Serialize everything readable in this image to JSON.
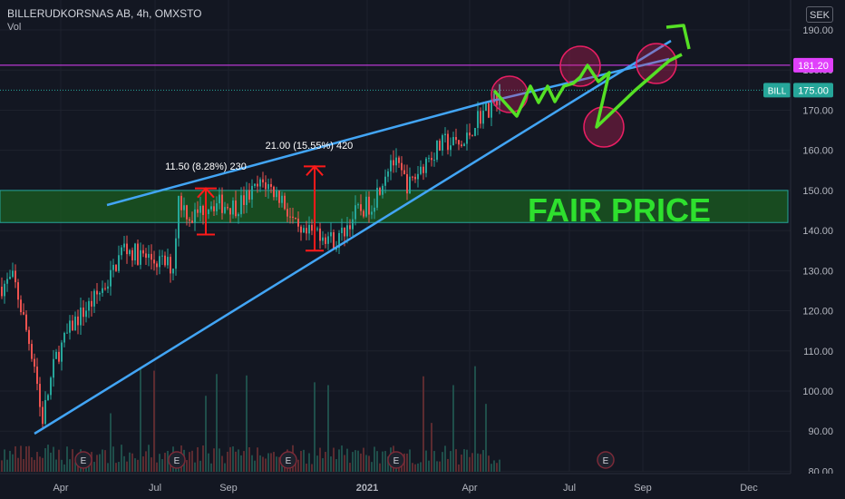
{
  "header": {
    "title": "BILLERUDKORSNAS AB, 4h, OMXSTO",
    "vol_label": "Vol"
  },
  "currency": "SEK",
  "chart_data": {
    "type": "candlestick",
    "x_ticks": [
      "Apr",
      "Jul",
      "Sep",
      "2021",
      "Apr",
      "Jul",
      "Sep",
      "Dec"
    ],
    "y_ticks": [
      "190.00",
      "180.00",
      "170.00",
      "160.00",
      "150.00",
      "140.00",
      "130.00",
      "120.00",
      "110.00",
      "100.00",
      "90.00",
      "80.00"
    ],
    "ylim": [
      80,
      190
    ],
    "price_levels": [
      {
        "label": "181.20",
        "value": 181.2,
        "color": "#e040fb"
      },
      {
        "label": "175.00",
        "value": 175.0,
        "color": "#26a69a",
        "tag": "BILL"
      }
    ],
    "fair_price_zone": {
      "label": "FAIR PRICE",
      "low": 142,
      "high": 150,
      "color": "#1b5e20",
      "text_color": "#2ee02e"
    },
    "measurements": [
      {
        "label": "11.50 (8.28%) 230",
        "low": 139,
        "high": 150.5
      },
      {
        "label": "21.00 (15.55%) 420",
        "low": 135,
        "high": 156
      }
    ],
    "earnings_markers": [
      "E",
      "E",
      "E",
      "E",
      "E"
    ],
    "colors": {
      "up": "#26a69a",
      "down": "#ef5350",
      "trend": "#42a5f5",
      "projection": "#55e025",
      "measure": "#ff1a1a",
      "circle": "#e91e63"
    }
  }
}
